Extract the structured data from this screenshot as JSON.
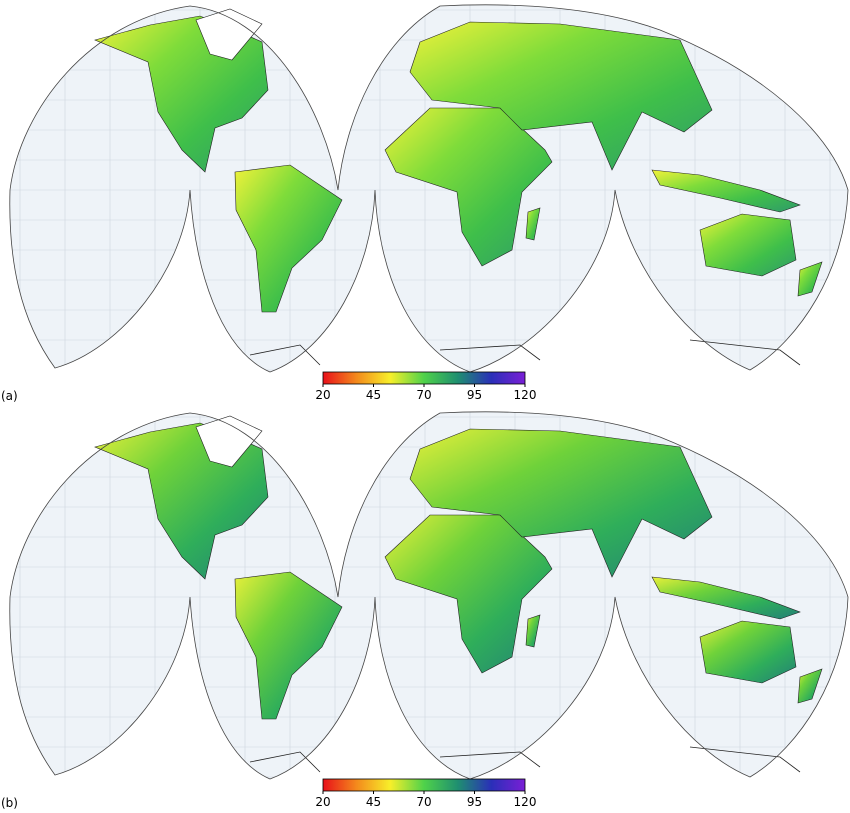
{
  "panels": [
    {
      "label": "(a)",
      "colorbar": {
        "lim": [
          20,
          120
        ],
        "ticks": [
          20,
          45,
          70,
          95,
          120
        ],
        "colors": [
          "#e8101a",
          "#f48a1c",
          "#f7ef2a",
          "#4fd24a",
          "#1f8f70",
          "#2a2fb8",
          "#7a1fd6"
        ]
      },
      "land_colors": [
        "#f2f23a",
        "#7fdc3a",
        "#3fbf4a",
        "#2f9a6a"
      ]
    },
    {
      "label": "(b)",
      "colorbar": {
        "lim": [
          20,
          120
        ],
        "ticks": [
          20,
          45,
          70,
          95,
          120
        ],
        "colors": [
          "#e8101a",
          "#f48a1c",
          "#f7ef2a",
          "#4fd24a",
          "#1f8f70",
          "#2a2fb8",
          "#7a1fd6"
        ]
      },
      "land_colors": [
        "#eaf03a",
        "#6fd23a",
        "#2fae5a",
        "#237f78"
      ]
    }
  ]
}
